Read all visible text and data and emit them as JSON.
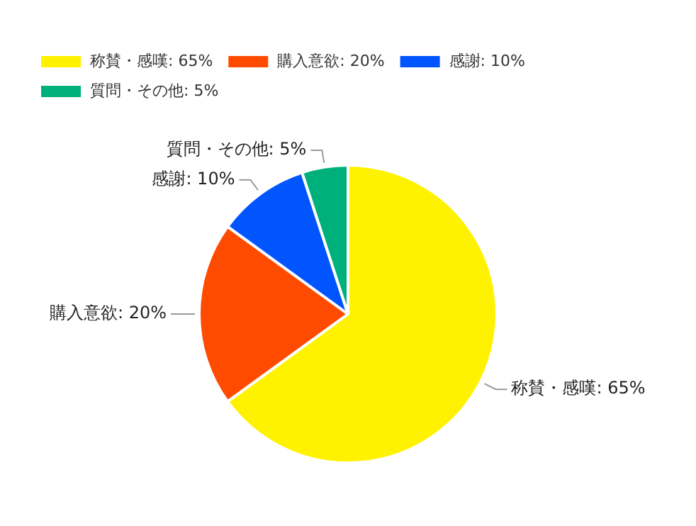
{
  "chart_data": {
    "type": "pie",
    "categories": [
      "称賛・感嘆",
      "購入意欲",
      "感謝",
      "質問・その他"
    ],
    "values": [
      65,
      20,
      10,
      5
    ],
    "value_labels": [
      "65%",
      "20%",
      "10%",
      "5%"
    ],
    "colors": [
      "#fff200",
      "#ff4b00",
      "#0055ff",
      "#00b07a"
    ],
    "legend": "top left"
  }
}
